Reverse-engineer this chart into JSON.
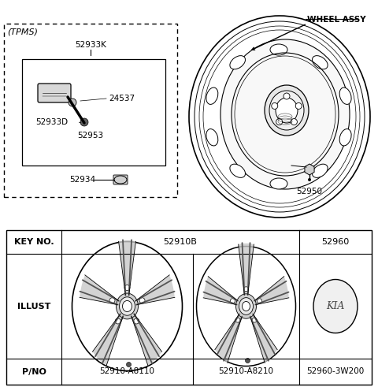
{
  "bg_color": "#ffffff",
  "line_color": "#000000",
  "text_color": "#000000",
  "wheel_assy_label": "WHEEL ASSY",
  "tpms_label": "(TPMS)",
  "table_key_no_label": "KEY NO.",
  "table_illust_label": "ILLUST",
  "table_pno_label": "P/NO",
  "table_col1_key": "52910B",
  "table_col2_key": "52960",
  "table_col1_pno1": "52910-A8110",
  "table_col1_pno2": "52910-A8210",
  "table_col2_pno": "52960-3W200",
  "label_52933K": "52933K",
  "label_24537": "24537",
  "label_52933D": "52933D",
  "label_52953": "52953",
  "label_52934": "52934",
  "label_52950": "52950"
}
